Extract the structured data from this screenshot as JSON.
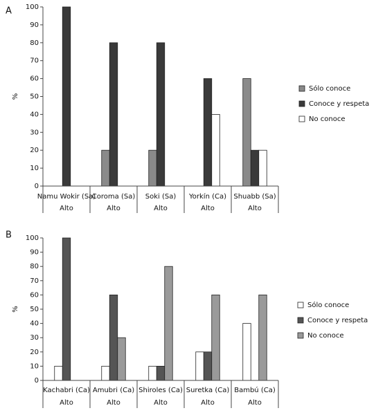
{
  "chart_data": [
    {
      "type": "bar",
      "panel": "A",
      "ylabel": "%",
      "categories": [
        "Namu Wokir (Sa)",
        "Coroma (Sa)",
        "Soki (Sa)",
        "Yorkín (Ca)",
        "Shuabb (Sa)"
      ],
      "levels": [
        "Alto",
        "Alto",
        "Alto",
        "Alto",
        "Alto"
      ],
      "series": [
        {
          "name": "Sólo conoce",
          "color": "#8a8a8a",
          "values": [
            0,
            20,
            20,
            0,
            60
          ]
        },
        {
          "name": "Conoce y respeta",
          "color": "#3a3a3a",
          "values": [
            100,
            80,
            80,
            60,
            20
          ]
        },
        {
          "name": "No conoce",
          "color": "#ffffff",
          "values": [
            0,
            0,
            0,
            40,
            20
          ]
        }
      ],
      "ylim": [
        0,
        100
      ],
      "yticks": [
        0,
        10,
        20,
        30,
        40,
        50,
        60,
        70,
        80,
        90,
        100
      ]
    },
    {
      "type": "bar",
      "panel": "B",
      "ylabel": "%",
      "categories": [
        "Kachabri (Ca)",
        "Amubri (Ca)",
        "Shiroles (Ca)",
        "Suretka (Ca)",
        "Bambú (Ca)"
      ],
      "levels": [
        "Alto",
        "Alto",
        "Alto",
        "Alto",
        "Alto"
      ],
      "series": [
        {
          "name": "Sólo conoce",
          "color": "#ffffff",
          "values": [
            10,
            10,
            10,
            20,
            40
          ]
        },
        {
          "name": "Conoce y respeta",
          "color": "#555555",
          "values": [
            100,
            60,
            10,
            20,
            0
          ]
        },
        {
          "name": "No conoce",
          "color": "#9a9a9a",
          "values": [
            0,
            30,
            80,
            60,
            60
          ]
        }
      ],
      "ylim": [
        0,
        100
      ],
      "yticks": [
        0,
        10,
        20,
        30,
        40,
        50,
        60,
        70,
        80,
        90,
        100
      ]
    }
  ]
}
